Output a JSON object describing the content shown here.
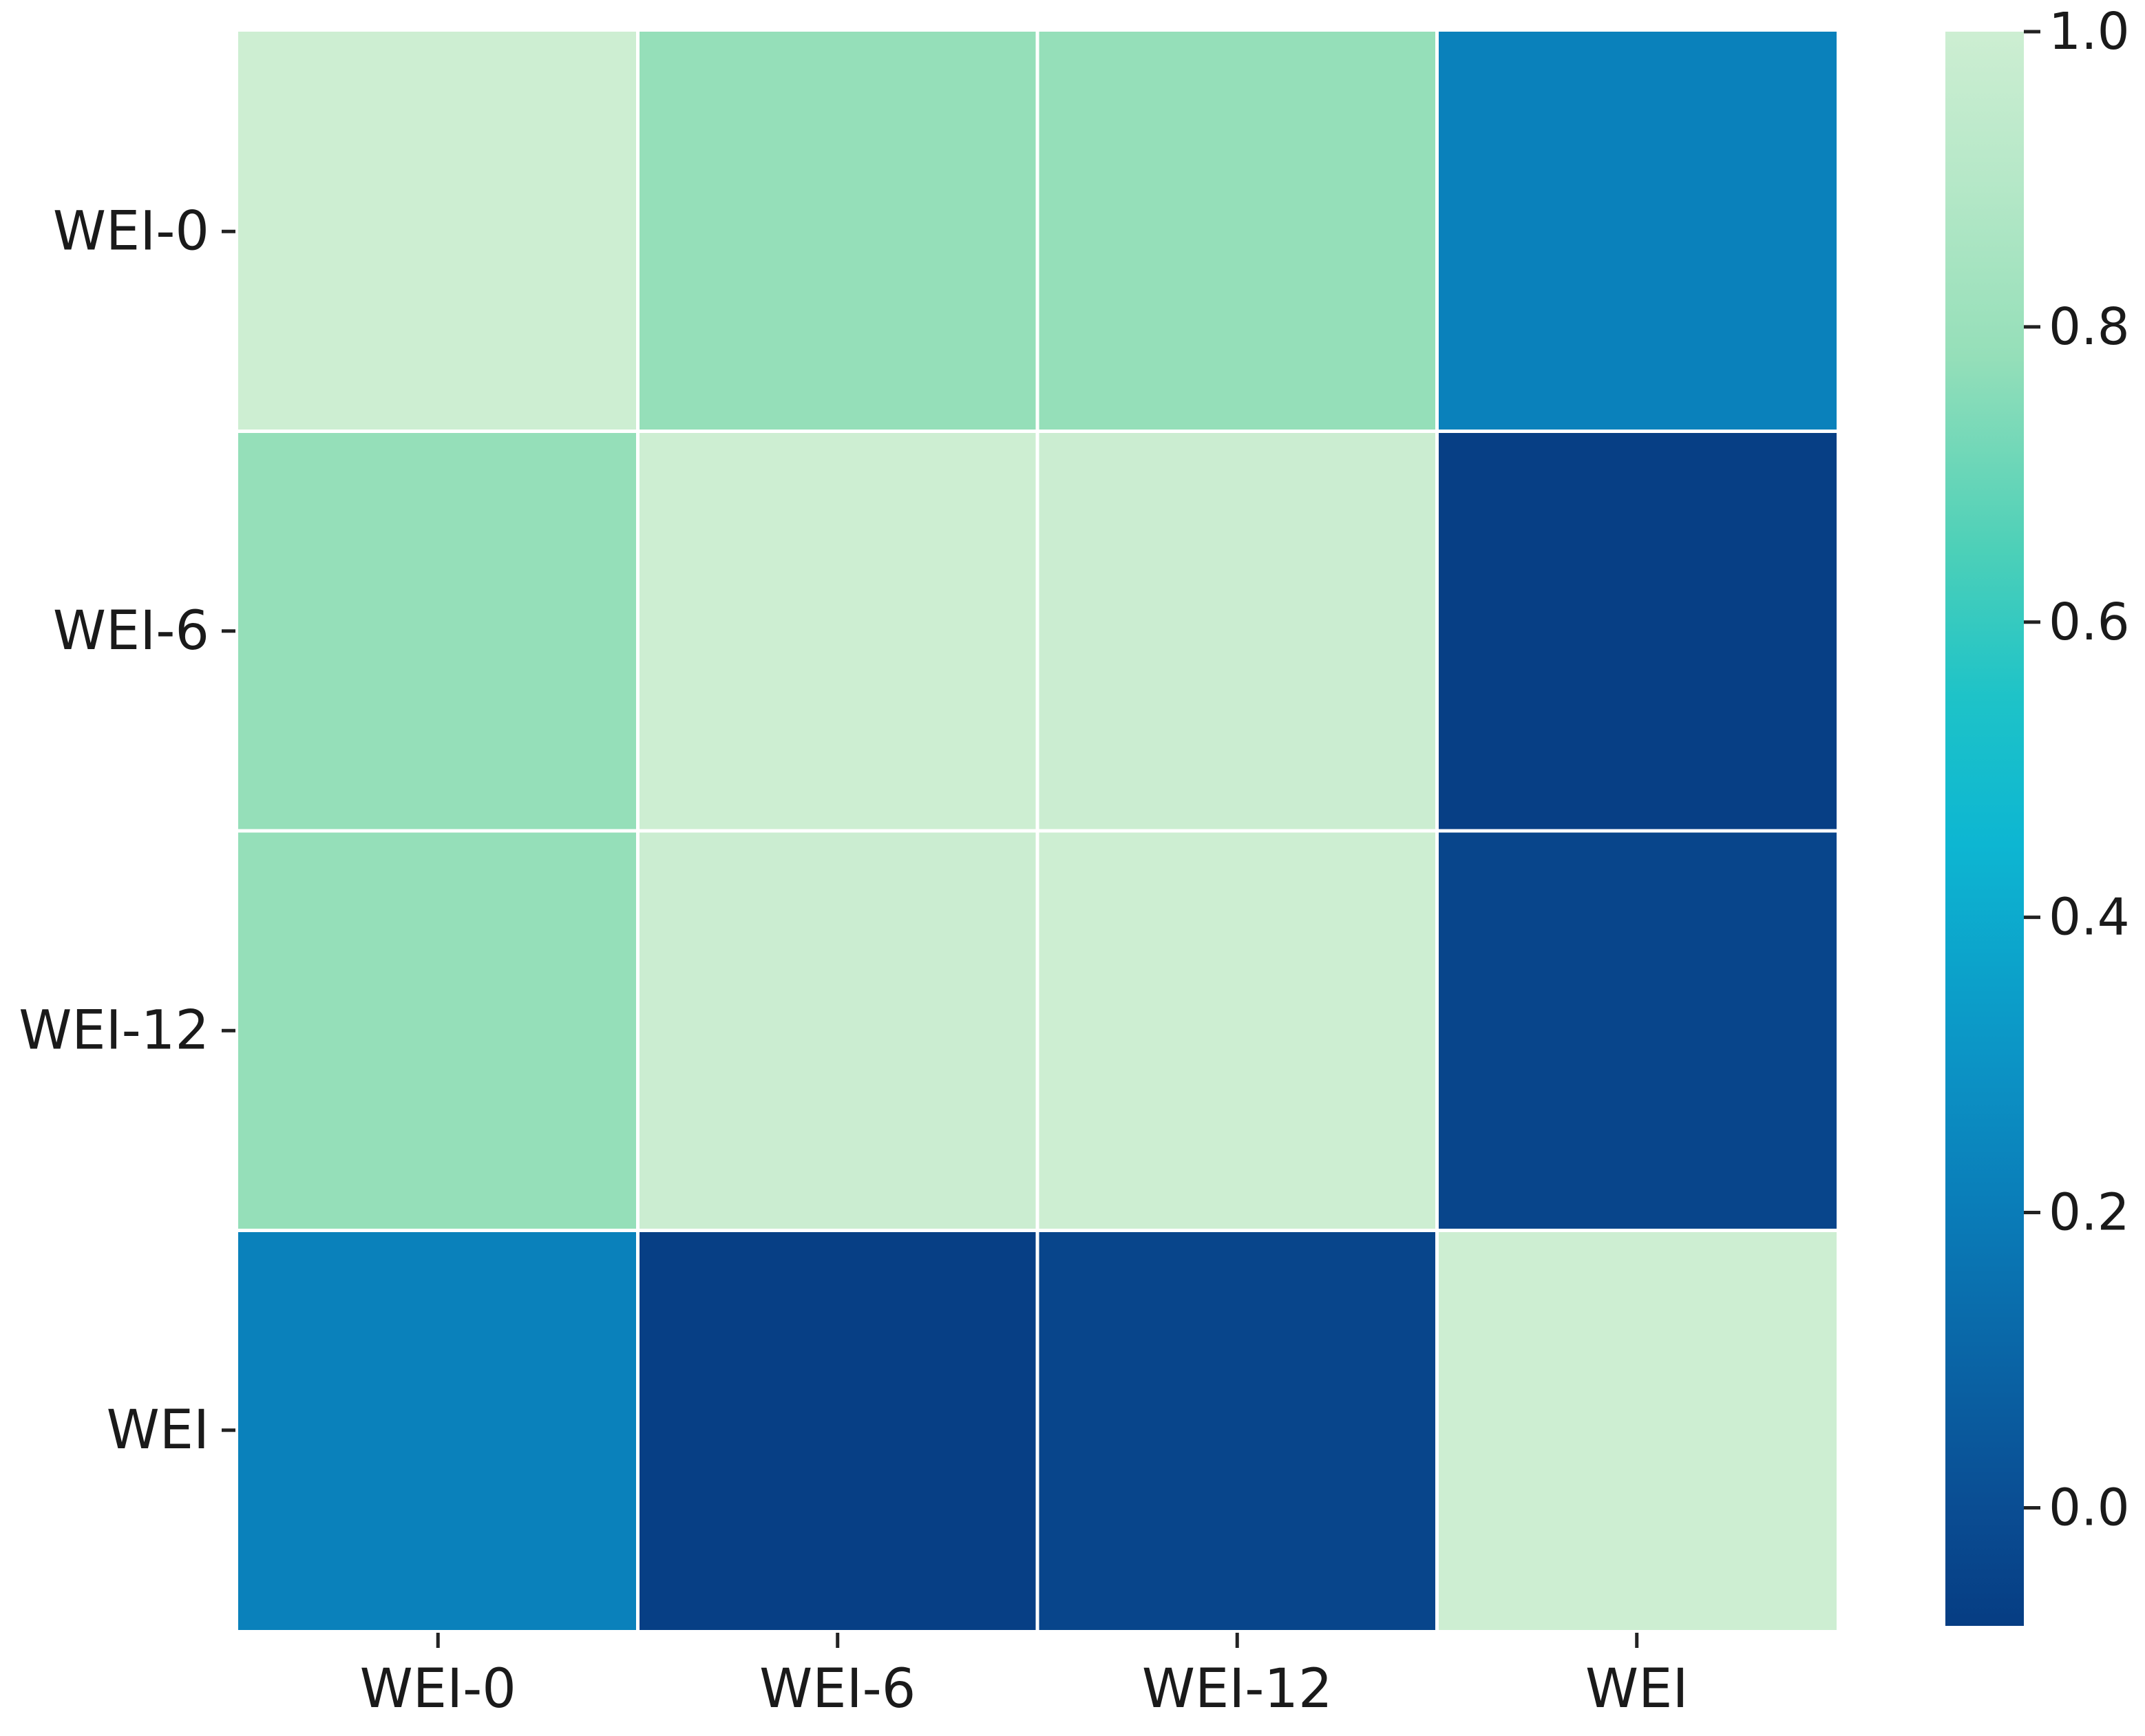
{
  "chart_data": {
    "type": "heatmap",
    "rows": [
      "WEI-0",
      "WEI-6",
      "WEI-12",
      "WEI"
    ],
    "columns": [
      "WEI-0",
      "WEI-6",
      "WEI-12",
      "WEI"
    ],
    "values": [
      [
        1.0,
        0.78,
        0.78,
        0.22
      ],
      [
        0.78,
        1.0,
        0.99,
        -0.07
      ],
      [
        0.78,
        0.99,
        1.0,
        -0.04
      ],
      [
        0.22,
        -0.07,
        -0.04,
        1.0
      ]
    ],
    "colorbar": {
      "min": -0.08,
      "max": 1.0,
      "ticks": [
        0.0,
        0.2,
        0.4,
        0.6,
        0.8,
        1.0
      ],
      "tick_labels": [
        "0.0",
        "0.2",
        "0.4",
        "0.6",
        "0.8",
        "1.0"
      ]
    },
    "colormap_name": "GnBu_r",
    "colormap_stops": [
      {
        "v": -0.08,
        "color": "#063d83"
      },
      {
        "v": 0.0,
        "color": "#0a4d93"
      },
      {
        "v": 0.2,
        "color": "#0a7cb8"
      },
      {
        "v": 0.3,
        "color": "#0c93c5"
      },
      {
        "v": 0.45,
        "color": "#0db6d2"
      },
      {
        "v": 0.55,
        "color": "#1ec3c8"
      },
      {
        "v": 0.65,
        "color": "#4dd0b8"
      },
      {
        "v": 0.78,
        "color": "#95dfb9"
      },
      {
        "v": 0.9,
        "color": "#b6e8c8"
      },
      {
        "v": 1.0,
        "color": "#cdeed2"
      }
    ],
    "cell_border_color": "#ffffff",
    "title": "",
    "xlabel": "",
    "ylabel": ""
  }
}
